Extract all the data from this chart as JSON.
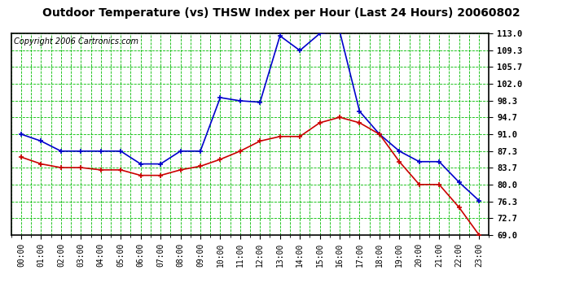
{
  "title": "Outdoor Temperature (vs) THSW Index per Hour (Last 24 Hours) 20060802",
  "copyright": "Copyright 2006 Cartronics.com",
  "hours": [
    "00:00",
    "01:00",
    "02:00",
    "03:00",
    "04:00",
    "05:00",
    "06:00",
    "07:00",
    "08:00",
    "09:00",
    "10:00",
    "11:00",
    "12:00",
    "13:00",
    "14:00",
    "15:00",
    "16:00",
    "17:00",
    "18:00",
    "19:00",
    "20:00",
    "21:00",
    "22:00",
    "23:00"
  ],
  "thsw": [
    91.0,
    89.5,
    87.3,
    87.3,
    87.3,
    87.3,
    84.5,
    84.5,
    87.3,
    87.3,
    99.0,
    98.3,
    98.0,
    112.5,
    109.3,
    113.0,
    113.5,
    96.0,
    91.0,
    87.3,
    85.0,
    85.0,
    80.5,
    76.5
  ],
  "temp": [
    86.0,
    84.5,
    83.7,
    83.7,
    83.2,
    83.2,
    82.0,
    82.0,
    83.2,
    84.0,
    85.5,
    87.3,
    89.5,
    90.5,
    90.5,
    93.5,
    94.7,
    93.5,
    91.0,
    85.0,
    80.0,
    80.0,
    75.0,
    69.0
  ],
  "yticks": [
    69.0,
    72.7,
    76.3,
    80.0,
    83.7,
    87.3,
    91.0,
    94.7,
    98.3,
    102.0,
    105.7,
    109.3,
    113.0
  ],
  "ymin": 69.0,
  "ymax": 113.0,
  "bg_color": "#ffffff",
  "plot_bg_color": "#ffffff",
  "grid_color": "#00bb00",
  "thsw_color": "#0000cc",
  "temp_color": "#cc0000",
  "title_fontsize": 10,
  "copyright_fontsize": 7,
  "border_color": "#000000"
}
